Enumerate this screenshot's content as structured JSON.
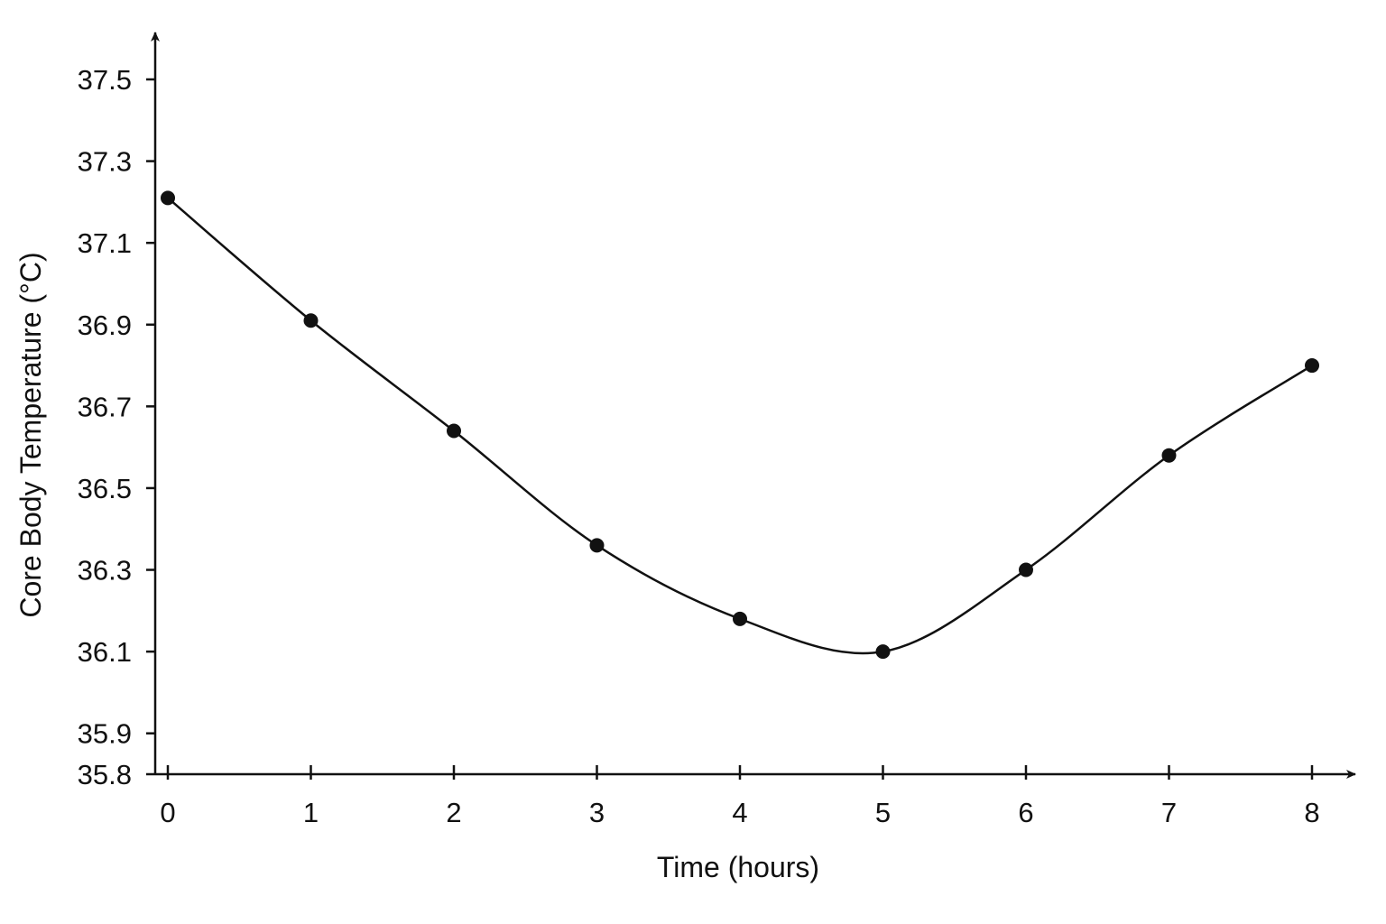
{
  "chart_data": {
    "type": "line",
    "title": "",
    "xlabel": "Time (hours)",
    "ylabel": "Core Body Temperature (°C)",
    "x": [
      0,
      1,
      2,
      3,
      4,
      5,
      6,
      7,
      8
    ],
    "series": [
      {
        "values": [
          37.21,
          36.91,
          36.64,
          36.36,
          36.18,
          36.1,
          36.3,
          36.58,
          36.8
        ]
      }
    ],
    "xlim": [
      0,
      8
    ],
    "ylim": [
      35.8,
      37.5
    ],
    "xticks": [
      "0",
      "1",
      "2",
      "3",
      "4",
      "5",
      "6",
      "7",
      "8"
    ],
    "yticks": [
      {
        "value": 35.8,
        "label": "35.8"
      },
      {
        "value": 35.9,
        "label": "35.9"
      },
      {
        "value": 36.1,
        "label": "36.1"
      },
      {
        "value": 36.3,
        "label": "36.3"
      },
      {
        "value": 36.5,
        "label": "36.5"
      },
      {
        "value": 36.7,
        "label": "36.7"
      },
      {
        "value": 36.9,
        "label": "36.9"
      },
      {
        "value": 37.1,
        "label": "37.1"
      },
      {
        "value": 37.3,
        "label": "37.3"
      },
      {
        "value": 37.5,
        "label": "37.5"
      }
    ],
    "grid": false,
    "legend": "none",
    "line_color": "#111111",
    "marker": "filled-circle",
    "smooth": true
  }
}
